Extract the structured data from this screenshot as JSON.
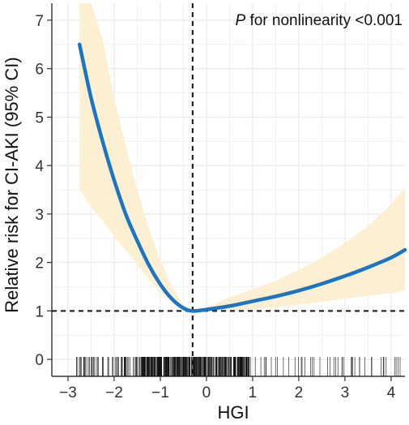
{
  "chart_data": {
    "type": "line",
    "xlabel": "HGI",
    "ylabel": "Relative risk for CI-AKI (95% CI)",
    "xlim": [
      -3.35,
      4.3
    ],
    "ylim": [
      -0.35,
      7.35
    ],
    "xticks": [
      -3,
      -2,
      -1,
      0,
      1,
      2,
      3,
      4
    ],
    "yticks": [
      0,
      1,
      2,
      3,
      4,
      5,
      6,
      7
    ],
    "grid": true,
    "annotation": {
      "italic": "P",
      "rest": " for nonlinearity <0.001"
    },
    "reference_lines": {
      "x": -0.3,
      "y": 1
    },
    "colors": {
      "line": "#1a75c4",
      "band": "#fdefd1",
      "grid": "#ececec"
    },
    "series": [
      {
        "x": [
          -2.75,
          -2.5,
          -2.25,
          -2.0,
          -1.75,
          -1.5,
          -1.25,
          -1.0,
          -0.75,
          -0.5,
          -0.3,
          0.0,
          0.5,
          1.0,
          1.5,
          2.0,
          2.5,
          3.0,
          3.5,
          4.0,
          4.3
        ],
        "y": [
          6.5,
          5.4,
          4.5,
          3.7,
          3.0,
          2.45,
          1.95,
          1.55,
          1.25,
          1.06,
          1.0,
          1.03,
          1.1,
          1.2,
          1.3,
          1.42,
          1.56,
          1.72,
          1.9,
          2.1,
          2.26
        ],
        "lower": [
          3.5,
          3.15,
          2.85,
          2.55,
          2.25,
          1.95,
          1.65,
          1.38,
          1.15,
          1.02,
          1.0,
          0.98,
          1.0,
          1.04,
          1.08,
          1.13,
          1.19,
          1.25,
          1.31,
          1.37,
          1.42
        ],
        "upper": [
          7.35,
          7.35,
          6.6,
          5.4,
          4.4,
          3.5,
          2.7,
          2.05,
          1.5,
          1.12,
          1.0,
          1.07,
          1.28,
          1.45,
          1.62,
          1.85,
          2.1,
          2.4,
          2.75,
          3.2,
          3.55
        ]
      }
    ],
    "rug": {
      "range": [
        -2.85,
        4.25
      ],
      "dense_range": [
        -1.4,
        0.9
      ],
      "count": 460
    }
  }
}
